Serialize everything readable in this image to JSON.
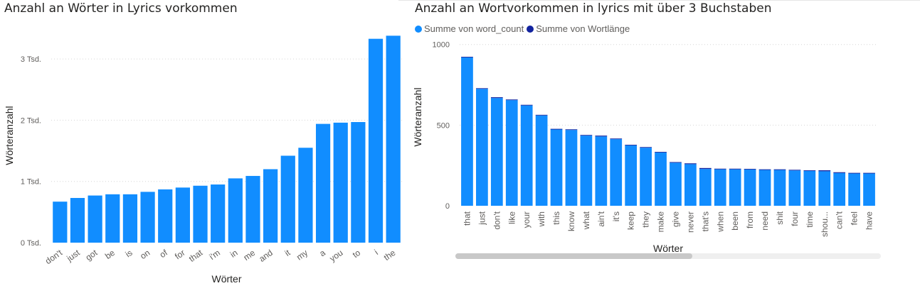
{
  "chart_data": [
    {
      "type": "bar",
      "title": "Anzahl an Wörter in Lyrics vorkommen",
      "xlabel": "Wörter",
      "ylabel": "Wörteranzahl",
      "ylim": [
        0,
        3500
      ],
      "yticks": [
        {
          "value": 0,
          "label": "0 Tsd."
        },
        {
          "value": 1000,
          "label": "1 Tsd."
        },
        {
          "value": 2000,
          "label": "2 Tsd."
        },
        {
          "value": 3000,
          "label": "3 Tsd."
        }
      ],
      "grid": true,
      "categories": [
        "don't",
        "just",
        "got",
        "be",
        "is",
        "on",
        "of",
        "for",
        "that",
        "i'm",
        "in",
        "me",
        "and",
        "it",
        "my",
        "a",
        "you",
        "to",
        "i",
        "the"
      ],
      "values": [
        670,
        730,
        770,
        790,
        790,
        830,
        870,
        900,
        930,
        950,
        1050,
        1090,
        1200,
        1420,
        1550,
        1940,
        1960,
        1970,
        3330,
        3380
      ],
      "color": "#118DFF"
    },
    {
      "type": "bar",
      "title": "Anzahl an Wortvorkommen in lyrics mit über 3 Buchstaben",
      "xlabel": "Wörter",
      "ylabel": "Wörteranzahl",
      "ylim": [
        0,
        1100
      ],
      "yticks": [
        {
          "value": 0,
          "label": "0"
        },
        {
          "value": 500,
          "label": "500"
        },
        {
          "value": 1000,
          "label": "1000"
        }
      ],
      "grid": true,
      "legend_position": "top-left",
      "categories": [
        "that",
        "just",
        "don't",
        "like",
        "your",
        "with",
        "this",
        "know",
        "what",
        "ain't",
        "it's",
        "keep",
        "they",
        "make",
        "give",
        "never",
        "that's",
        "when",
        "been",
        "from",
        "need",
        "shit",
        "four",
        "time",
        "shou...",
        "can't",
        "feel",
        "have"
      ],
      "series": [
        {
          "name": "Summe von word_count",
          "color": "#118DFF",
          "values": [
            920,
            725,
            668,
            655,
            622,
            560,
            473,
            470,
            435,
            430,
            413,
            374,
            360,
            330,
            267,
            258,
            228,
            226,
            226,
            225,
            222,
            222,
            219,
            216,
            214,
            203,
            200,
            200
          ]
        },
        {
          "name": "Summe von Wortlänge",
          "color": "#12239E",
          "values": [
            4,
            4,
            5,
            4,
            4,
            4,
            4,
            4,
            4,
            5,
            4,
            4,
            4,
            4,
            4,
            5,
            6,
            4,
            4,
            4,
            4,
            4,
            4,
            4,
            6,
            5,
            4,
            4
          ]
        }
      ]
    }
  ]
}
